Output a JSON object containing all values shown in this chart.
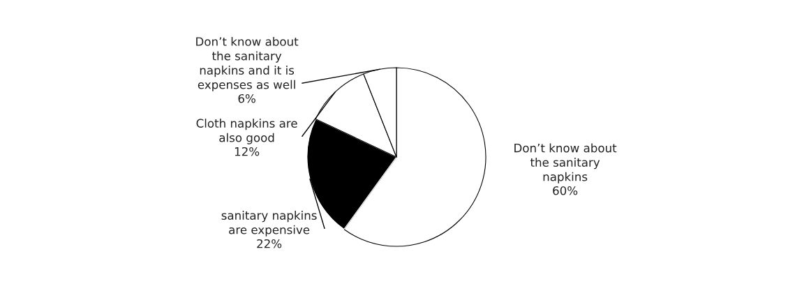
{
  "chart_data": {
    "type": "pie",
    "categories": [
      "Don’t know about\nthe sanitary\nnapkins",
      "sanitary napkins\nare expensive",
      "Cloth napkins are\nalso good",
      "Don’t know about\nthe sanitary\nnapkins and it is\nexpenses as well"
    ],
    "values": [
      60,
      22,
      12,
      6
    ],
    "value_labels": [
      "60%",
      "22%",
      "12%",
      "6%"
    ],
    "colors": [
      "#ffffff",
      "#000000",
      "#ffffff",
      "#ffffff"
    ]
  }
}
